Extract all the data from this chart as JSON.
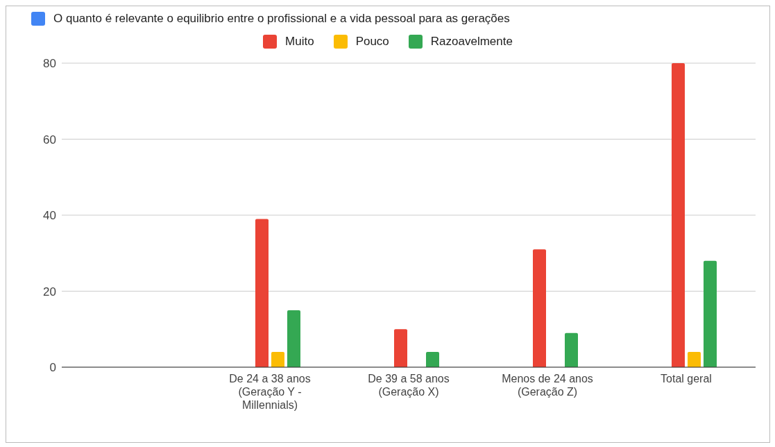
{
  "chart_data": {
    "type": "bar",
    "categories": [
      null,
      "De 24 a 38 anos (Geração Y - Millennials)",
      "De 39 a 58 anos (Geração X)",
      "Menos de 24 anos (Geração Z)",
      "Total geral"
    ],
    "series": [
      {
        "name": "O quanto é relevante o equilibrio entre o profissional e a vida pessoal para as gerações",
        "color": "#4285f4",
        "values": [
          null,
          null,
          null,
          null,
          null
        ]
      },
      {
        "name": "Muito",
        "color": "#ea4335",
        "values": [
          null,
          39,
          10,
          31,
          80
        ]
      },
      {
        "name": "Pouco",
        "color": "#fbbc04",
        "values": [
          null,
          4,
          null,
          null,
          4
        ]
      },
      {
        "name": "Razoavelmente",
        "color": "#34a853",
        "values": [
          null,
          15,
          4,
          9,
          28
        ]
      }
    ],
    "ylim": [
      0,
      80
    ],
    "yticks": [
      0,
      20,
      40,
      60,
      80
    ],
    "grid": "y",
    "legend": "top"
  }
}
